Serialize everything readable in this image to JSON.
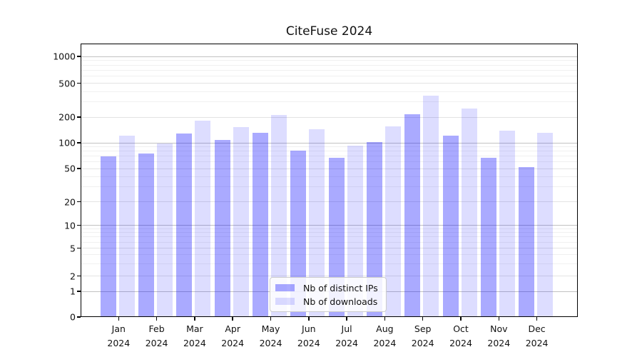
{
  "title": "CiteFuse 2024",
  "colors": {
    "bar_distinct_ips": "rgba(0,0,255,0.335)",
    "bar_downloads": "rgba(0,0,255,0.135)",
    "grid_major": "#c2c2c2",
    "grid_labeled": "#e3e3e3",
    "grid_minor": "#f0f0f0",
    "axis": "#000000",
    "text": "#111111"
  },
  "legend": {
    "items": [
      {
        "label": "Nb of distinct IPs",
        "color": "rgba(0,0,255,0.335)"
      },
      {
        "label": "Nb of downloads",
        "color": "rgba(0,0,255,0.135)"
      }
    ]
  },
  "chart_data": {
    "type": "bar",
    "title": "CiteFuse 2024",
    "categories": [
      "Jan 2024",
      "Feb 2024",
      "Mar 2024",
      "Apr 2024",
      "May 2024",
      "Jun 2024",
      "Jul 2024",
      "Aug 2024",
      "Sep 2024",
      "Oct 2024",
      "Nov 2024",
      "Dec 2024"
    ],
    "series": [
      {
        "name": "Nb of distinct IPs",
        "values": [
          68,
          74,
          127,
          106,
          128,
          80,
          65,
          100,
          210,
          119,
          65,
          51
        ]
      },
      {
        "name": "Nb of downloads",
        "values": [
          118,
          97,
          178,
          149,
          208,
          142,
          90,
          153,
          350,
          245,
          137,
          128
        ]
      }
    ],
    "xlabel": "",
    "ylabel": "",
    "yscale": "log-like (compressed toward 0, shows 0 baseline)",
    "yticks": [
      0,
      1,
      2,
      5,
      10,
      20,
      50,
      100,
      200,
      500,
      1000
    ],
    "ylim": [
      0,
      1400
    ],
    "grid": true,
    "legend_position": "lower center"
  }
}
